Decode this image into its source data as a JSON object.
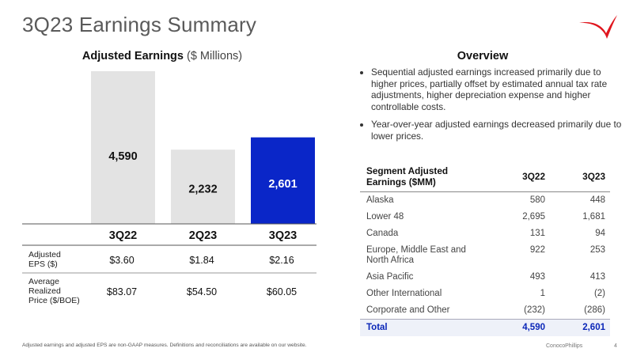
{
  "header": {
    "title": "3Q23 Earnings Summary"
  },
  "chart_data": {
    "type": "bar",
    "title": "Adjusted Earnings",
    "title_unit": "($ Millions)",
    "categories": [
      "3Q22",
      "2Q23",
      "3Q23"
    ],
    "values": [
      4590,
      2232,
      2601
    ],
    "value_labels": [
      "4,590",
      "2,232",
      "2,601"
    ],
    "bar_colors": [
      "#e3e3e3",
      "#e3e3e3",
      "#0a26c8"
    ],
    "value_label_colors": [
      "#111111",
      "#111111",
      "#ffffff"
    ],
    "ylim": [
      0,
      4590
    ],
    "grid": false,
    "xlabel": "",
    "ylabel": ""
  },
  "chart_table": {
    "rows": [
      {
        "label": [
          "Adjusted",
          "EPS ($)"
        ],
        "values": [
          "$3.60",
          "$1.84",
          "$2.16"
        ]
      },
      {
        "label": [
          "Average",
          "Realized",
          "Price ($/BOE)"
        ],
        "values": [
          "$83.07",
          "$54.50",
          "$60.05"
        ]
      }
    ]
  },
  "overview": {
    "title": "Overview",
    "bullets": [
      "Sequential adjusted earnings increased primarily due to higher prices, partially offset by estimated annual tax rate adjustments, higher depreciation expense and higher controllable costs.",
      "Year-over-year adjusted earnings decreased primarily due to lower prices."
    ]
  },
  "segment_table": {
    "headers": [
      "Segment Adjusted Earnings ($MM)",
      "3Q22",
      "3Q23"
    ],
    "rows": [
      {
        "name": "Alaska",
        "q22": "580",
        "q23": "448"
      },
      {
        "name": "Lower 48",
        "q22": "2,695",
        "q23": "1,681"
      },
      {
        "name": "Canada",
        "q22": "131",
        "q23": "94"
      },
      {
        "name": "Europe, Middle East and North Africa",
        "q22": "922",
        "q23": "253"
      },
      {
        "name": "Asia Pacific",
        "q22": "493",
        "q23": "413"
      },
      {
        "name": "Other International",
        "q22": "1",
        "q23": "(2)"
      },
      {
        "name": "Corporate and Other",
        "q22": "(232)",
        "q23": "(286)"
      }
    ],
    "total": {
      "name": "Total",
      "q22": "4,590",
      "q23": "2,601"
    }
  },
  "footer": {
    "footnote": "Adjusted earnings and adjusted EPS are non-GAAP measures. Definitions and reconciliations are available on our website.",
    "company": "ConocoPhillips",
    "page": "4"
  },
  "colors": {
    "accent": "#0a26c8",
    "logo_red": "#e0161e"
  }
}
